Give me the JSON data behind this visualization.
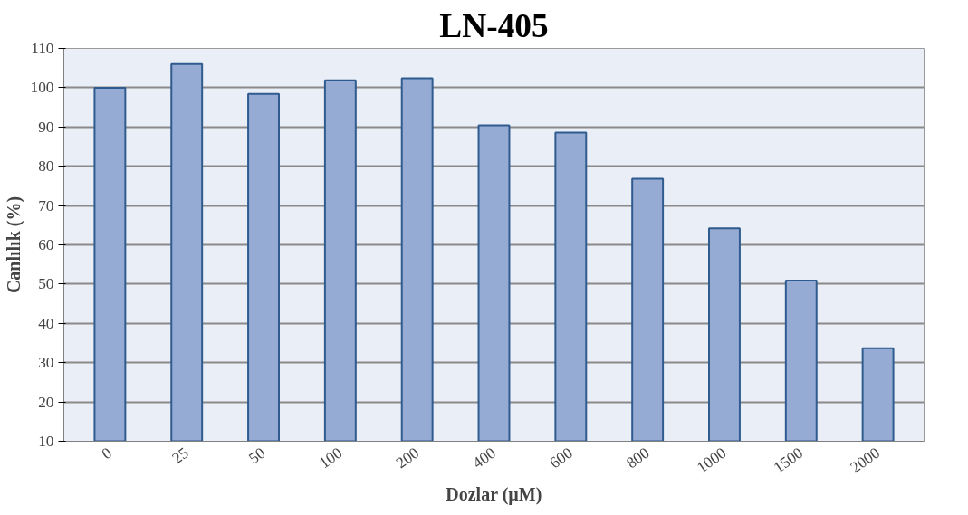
{
  "chart_data": {
    "type": "bar",
    "title": "LN-405",
    "xlabel": "Dozlar (µM)",
    "ylabel": "Canlılık (%)",
    "categories": [
      "0",
      "25",
      "50",
      "100",
      "200",
      "400",
      "600",
      "800",
      "1000",
      "1500",
      "2000"
    ],
    "values": [
      100,
      106,
      98.4,
      101.9,
      102.4,
      90.4,
      88.6,
      76.8,
      64.2,
      50.9,
      33.7
    ],
    "color": "#95abd3",
    "ylim": [
      10,
      110
    ],
    "yticks": [
      10,
      20,
      30,
      40,
      50,
      60,
      70,
      80,
      90,
      100,
      110
    ],
    "grid": "y"
  }
}
